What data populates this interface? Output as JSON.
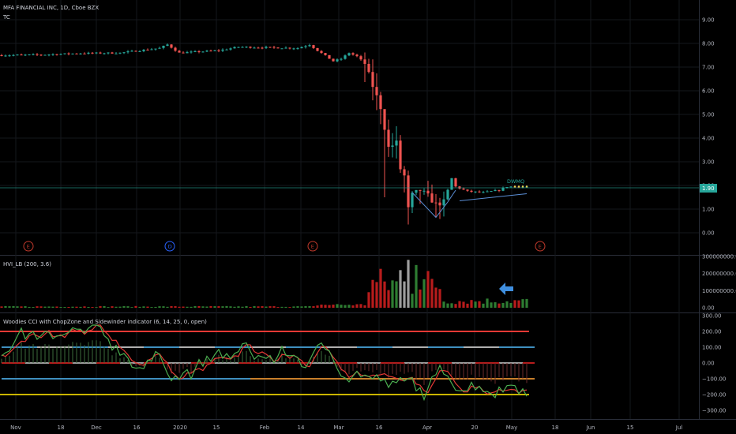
{
  "header": {
    "symbol_line": "MFA FINANCIAL INC, 1D, Cboe BZX",
    "indicator_tag": "TC"
  },
  "price_pane": {
    "y_ticks": [
      "9.00",
      "8.00",
      "7.00",
      "6.00",
      "5.00",
      "4.00",
      "3.00",
      "2.00",
      "1.00",
      "0.00"
    ],
    "current_price": "1.90",
    "pattern_label": "DWMQ",
    "events": [
      {
        "letter": "E",
        "color": "#c0392b"
      },
      {
        "letter": "D",
        "color": "#2962ff"
      },
      {
        "letter": "E",
        "color": "#c0392b"
      },
      {
        "letter": "E",
        "color": "#c0392b"
      }
    ]
  },
  "volume_pane": {
    "title": "HVI_LB (200, 3.6)",
    "y_ticks": [
      "300000000.00",
      "200000000.00",
      "100000000.00",
      "0.00"
    ]
  },
  "cci_pane": {
    "title": "Woodies CCI with ChopZone and Sidewinder indicator (6, 14, 25, 0, open)",
    "y_ticks": [
      "300.00",
      "200.00",
      "100.00",
      "0.00",
      "−100.00",
      "−200.00",
      "−300.00"
    ]
  },
  "x_axis": {
    "labels": [
      "Nov",
      "18",
      "Dec",
      "16",
      "2020",
      "15",
      "Feb",
      "14",
      "Mar",
      "16",
      "Apr",
      "20",
      "May",
      "18",
      "Jun",
      "15",
      "Jul"
    ]
  },
  "colors": {
    "up": "#26a69a",
    "down": "#ef5350",
    "cci_green": "#4caf50",
    "cci_red": "#e53935",
    "cci_blue": "#3f8fbf",
    "cci_yellow": "#c9b400",
    "current_line": "#26a69a",
    "arrow": "#3f8fe0"
  },
  "chart_data": [
    {
      "type": "candlestick",
      "title": "MFA FINANCIAL INC, 1D, Cboe BZX",
      "ylim": [
        0,
        9
      ],
      "x_labels": [
        "Nov",
        "18",
        "Dec",
        "16",
        "2020",
        "15",
        "Feb",
        "14",
        "Mar",
        "16",
        "Apr",
        "20",
        "May"
      ],
      "price_segments": [
        {
          "period": "Nov",
          "close_approx": 7.5
        },
        {
          "period": "Dec",
          "close_approx": 7.6
        },
        {
          "period": "Jan",
          "close_approx": 7.8
        },
        {
          "period": "Feb",
          "close_approx": 7.8
        },
        {
          "period": "early Mar",
          "close_approx": 7.3
        },
        {
          "period": "mid Mar",
          "close_approx": 3.0
        },
        {
          "period": "late Mar",
          "close_approx": 1.2
        },
        {
          "period": "Apr",
          "close_approx": 1.7
        },
        {
          "period": "end Apr",
          "close_approx": 1.9
        }
      ],
      "last_price": 1.9
    },
    {
      "type": "bar",
      "title": "HVI_LB (200, 3.6)",
      "ylim": [
        0,
        300000000
      ],
      "peak_volume_approx": 280000000
    },
    {
      "type": "line",
      "title": "Woodies CCI with ChopZone and Sidewinder indicator (6, 14, 25, 0, open)",
      "ylim": [
        -300,
        300
      ],
      "reference_levels": [
        200,
        100,
        0,
        -100,
        -200
      ]
    }
  ]
}
